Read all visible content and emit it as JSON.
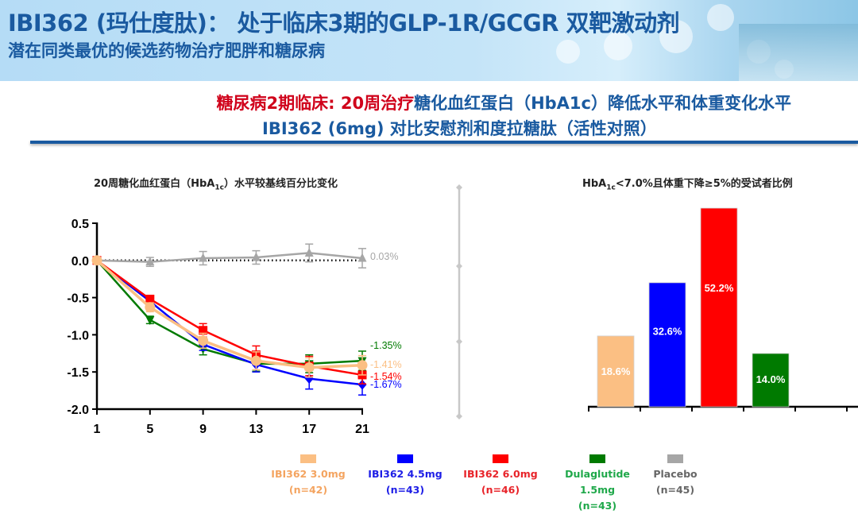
{
  "header": {
    "title": "IBI362 (玛仕度肽)： 处于临床3期的GLP-1R/GCGR 双靶激动剂",
    "subtitle": "潜在同类最优的候选药物治疗肥胖和糖尿病"
  },
  "section": {
    "line1_red": "糖尿病2期临床: 20周治疗",
    "line1_blue": "糖化血红蛋白（HbA1c）降低水平和体重变化水平",
    "line2": "IBI362 (6mg) 对比安慰剂和度拉糖肽（活性对照）"
  },
  "colors": {
    "ibi_3mg": "#fbbf83",
    "ibi_45mg": "#0000ff",
    "ibi_6mg": "#ff0000",
    "dula": "#007a00",
    "placebo": "#a6a6a6",
    "brand_blue": "#1a5aa0"
  },
  "chart_data": [
    {
      "type": "line",
      "title_pre": "20周糖化血红蛋白（HbA",
      "title_sub": "1c",
      "title_post": "）水平较基线百分比变化",
      "xlabel": "",
      "ylabel": "",
      "x": [
        1,
        5,
        9,
        13,
        17,
        21
      ],
      "x_ticks": [
        "1",
        "5",
        "9",
        "13",
        "17",
        "21"
      ],
      "y_ticks": [
        "0.5",
        "0.0",
        "-0.5",
        "-1.0",
        "-1.5",
        "-2.0"
      ],
      "ylim": [
        -2.0,
        0.5
      ],
      "xlim": [
        1,
        21
      ],
      "reference_line": 0,
      "series": [
        {
          "name": "Placebo",
          "key": "placebo",
          "marker": "triangle-up",
          "values": [
            0,
            -0.02,
            0.03,
            0.04,
            0.1,
            0.03
          ],
          "err": [
            0,
            0.06,
            0.09,
            0.09,
            0.12,
            0.13
          ],
          "end_label": "0.03%"
        },
        {
          "name": "Dulaglutide 1.5mg",
          "key": "dula",
          "marker": "triangle-down",
          "values": [
            0,
            -0.8,
            -1.19,
            -1.39,
            -1.39,
            -1.35
          ],
          "err": [
            0,
            0.05,
            0.08,
            0.1,
            0.12,
            0.13
          ],
          "end_label": "-1.35%"
        },
        {
          "name": "IBI362 4.5mg",
          "key": "ibi_45mg",
          "marker": "diamond",
          "values": [
            0,
            -0.55,
            -1.13,
            -1.4,
            -1.59,
            -1.67
          ],
          "err": [
            0,
            0.05,
            0.08,
            0.1,
            0.14,
            0.14
          ],
          "end_label": "-1.67%"
        },
        {
          "name": "IBI362 6.0mg",
          "key": "ibi_6mg",
          "marker": "square",
          "values": [
            0,
            -0.52,
            -0.94,
            -1.27,
            -1.42,
            -1.54
          ],
          "err": [
            0,
            0.05,
            0.09,
            0.12,
            0.13,
            0.12
          ],
          "end_label": "-1.54%"
        },
        {
          "name": "IBI362 3.0mg",
          "key": "ibi_3mg",
          "marker": "circle",
          "values": [
            0,
            -0.63,
            -1.08,
            -1.35,
            -1.44,
            -1.41
          ],
          "err": [
            0,
            0.06,
            0.1,
            0.12,
            0.13,
            0.13
          ],
          "end_label": "-1.41%"
        }
      ]
    },
    {
      "type": "bar",
      "title_pre": "HbA",
      "title_sub": "1c",
      "title_post": "<7.0%且体重下降≥5%的受试者比例",
      "categories": [
        "IBI362 3.0mg",
        "IBI362 4.5mg",
        "IBI362 6.0mg",
        "Dulaglutide 1.5mg"
      ],
      "keys": [
        "ibi_3mg",
        "ibi_45mg",
        "ibi_6mg",
        "dula"
      ],
      "values": [
        18.6,
        32.6,
        52.2,
        14.0
      ],
      "labels": [
        "18.6%",
        "32.6%",
        "52.2%",
        "14.0%"
      ],
      "ylim": [
        0,
        55
      ]
    }
  ],
  "legend": [
    {
      "label": "IBI362 3.0mg",
      "n": "(n=42)",
      "key": "ibi_3mg",
      "text_color": "#f4a460"
    },
    {
      "label": "IBI362 4.5mg",
      "n": "(n=43)",
      "key": "ibi_45mg",
      "text_color": "#1e1ee6"
    },
    {
      "label": "IBI362 6.0mg",
      "n": "(n=46)",
      "key": "ibi_6mg",
      "text_color": "#e8242a"
    },
    {
      "label": "Dulaglutide 1.5mg",
      "n": "(n=43)",
      "key": "dula",
      "text_color": "#1fa84a"
    },
    {
      "label": "Placebo",
      "n": "(n=45)",
      "key": "placebo",
      "text_color": "#666666"
    }
  ]
}
